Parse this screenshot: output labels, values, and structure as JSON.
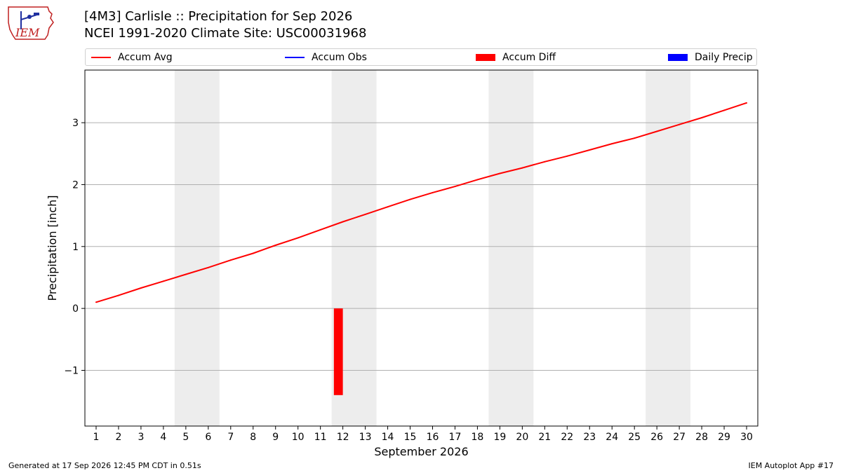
{
  "header": {
    "title_line1": "[4M3] Carlisle :: Precipitation for Sep 2026",
    "title_line2": "NCEI 1991-2020 Climate Site: USC00031968"
  },
  "logo": {
    "text": "IEM"
  },
  "legend": [
    {
      "label": "Accum Avg",
      "kind": "line",
      "color": "#ff0000"
    },
    {
      "label": "Accum Obs",
      "kind": "line",
      "color": "#0000ff"
    },
    {
      "label": "Accum Diff",
      "kind": "box",
      "color": "#ff0000"
    },
    {
      "label": "Daily Precip",
      "kind": "box",
      "color": "#0000ff"
    }
  ],
  "chart_data": {
    "type": "line",
    "xlabel": "September 2026",
    "ylabel": "Precipitation [inch]",
    "x": [
      1,
      2,
      3,
      4,
      5,
      6,
      7,
      8,
      9,
      10,
      11,
      12,
      13,
      14,
      15,
      16,
      17,
      18,
      19,
      20,
      21,
      22,
      23,
      24,
      25,
      26,
      27,
      28,
      29,
      30
    ],
    "xlim": [
      0.5,
      30.5
    ],
    "ylim": [
      -1.9,
      3.85
    ],
    "yticks": [
      -1,
      0,
      1,
      2,
      3
    ],
    "ytick_labels": [
      "−1",
      "0",
      "1",
      "2",
      "3"
    ],
    "grid": "horizontal",
    "weekend_shading": [
      [
        4.5,
        6.5
      ],
      [
        11.5,
        13.5
      ],
      [
        18.5,
        20.5
      ],
      [
        25.5,
        27.5
      ]
    ],
    "series": [
      {
        "name": "Accum Avg",
        "type": "line",
        "color": "#ff0000",
        "values": [
          0.1,
          0.21,
          0.33,
          0.44,
          0.55,
          0.66,
          0.78,
          0.89,
          1.02,
          1.14,
          1.27,
          1.4,
          1.52,
          1.64,
          1.76,
          1.87,
          1.97,
          2.08,
          2.18,
          2.27,
          2.37,
          2.46,
          2.56,
          2.66,
          2.75,
          2.86,
          2.97,
          3.08,
          3.2,
          3.32
        ]
      },
      {
        "name": "Accum Diff",
        "type": "bar",
        "color": "#ff0000",
        "x": [
          11.8
        ],
        "values": [
          -1.4
        ]
      }
    ]
  },
  "footer": {
    "generated": "Generated at 17 Sep 2026 12:45 PM CDT in 0.51s",
    "app": "IEM Autoplot App #17"
  }
}
